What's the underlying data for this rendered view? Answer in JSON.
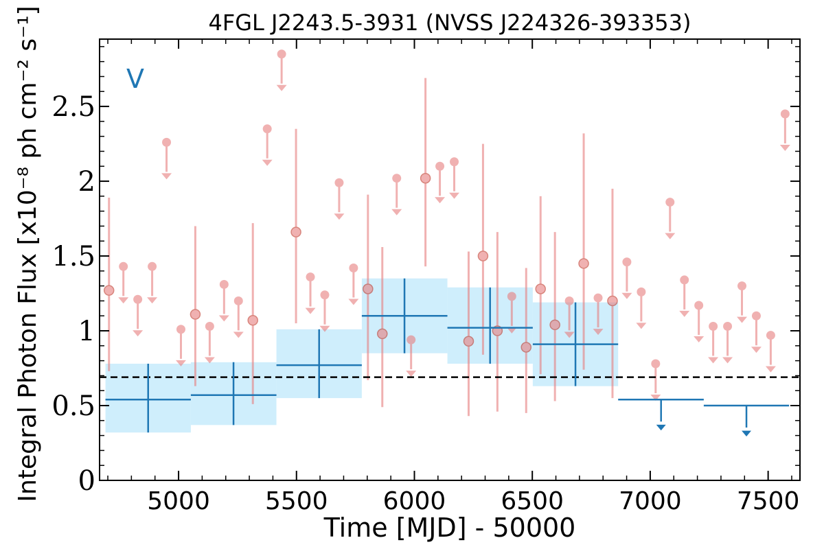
{
  "chart_data": {
    "type": "scatter",
    "title": "4FGL J2243.5-3931 (NVSS J224326-393353)",
    "xlabel": "Time [MJD] - 50000",
    "ylabel": "Integral Photon Flux [x10⁻⁸ ph cm⁻² s⁻¹]",
    "annotation": "V",
    "xlim": [
      4665,
      7635
    ],
    "ylim": [
      0,
      2.95
    ],
    "xticks": [
      5000,
      5500,
      6000,
      6500,
      7000,
      7500
    ],
    "xtick_labels": [
      "5000",
      "5500",
      "6000",
      "6500",
      "7000",
      "7500"
    ],
    "yticks": [
      0,
      0.5,
      1,
      1.5,
      2,
      2.5
    ],
    "ytick_labels": [
      "0",
      "0.5",
      "1",
      "1.5",
      "2",
      "2.5"
    ],
    "reference_line": 0.69,
    "colors": {
      "short_bins": "#e78283",
      "long_bins": "#1f77b4",
      "band": "#cfeefc",
      "reference": "#000000"
    },
    "series": [
      {
        "style": "short-bin",
        "points": [
          {
            "x": 4705,
            "y": 1.27,
            "lo": 0.73,
            "hi": 1.89
          },
          {
            "x": 4766,
            "y": 1.43,
            "ul": true
          },
          {
            "x": 4827,
            "y": 1.21,
            "ul": true
          },
          {
            "x": 4888,
            "y": 1.43,
            "ul": true
          },
          {
            "x": 4949,
            "y": 2.26,
            "ul": true
          },
          {
            "x": 5010,
            "y": 1.01,
            "ul": true
          },
          {
            "x": 5071,
            "y": 1.11,
            "lo": 0.63,
            "hi": 1.7
          },
          {
            "x": 5132,
            "y": 1.03,
            "ul": true
          },
          {
            "x": 5193,
            "y": 1.31,
            "ul": true
          },
          {
            "x": 5254,
            "y": 1.2,
            "ul": true
          },
          {
            "x": 5315,
            "y": 1.07,
            "lo": 0.51,
            "hi": 1.72
          },
          {
            "x": 5376,
            "y": 2.35,
            "ul": true
          },
          {
            "x": 5437,
            "y": 2.85,
            "ul": true
          },
          {
            "x": 5498,
            "y": 1.66,
            "lo": 1.05,
            "hi": 2.35
          },
          {
            "x": 5559,
            "y": 1.36,
            "ul": true
          },
          {
            "x": 5620,
            "y": 1.24,
            "ul": true
          },
          {
            "x": 5681,
            "y": 1.99,
            "ul": true
          },
          {
            "x": 5742,
            "y": 1.42,
            "ul": true
          },
          {
            "x": 5803,
            "y": 1.28,
            "lo": 0.67,
            "hi": 1.91
          },
          {
            "x": 5864,
            "y": 0.98,
            "lo": 0.49,
            "hi": 1.56
          },
          {
            "x": 5925,
            "y": 2.02,
            "ul": true
          },
          {
            "x": 5986,
            "y": 0.94,
            "ul": true
          },
          {
            "x": 6047,
            "y": 2.02,
            "lo": 1.43,
            "hi": 2.69
          },
          {
            "x": 6108,
            "y": 2.1,
            "ul": true
          },
          {
            "x": 6169,
            "y": 2.13,
            "ul": true
          },
          {
            "x": 6230,
            "y": 0.93,
            "lo": 0.43,
            "hi": 1.53
          },
          {
            "x": 6291,
            "y": 1.5,
            "lo": 0.84,
            "hi": 2.25
          },
          {
            "x": 6352,
            "y": 1.0,
            "lo": 0.46,
            "hi": 1.66
          },
          {
            "x": 6413,
            "y": 1.23,
            "ul": true
          },
          {
            "x": 6474,
            "y": 0.89,
            "lo": 0.45,
            "hi": 1.42
          },
          {
            "x": 6535,
            "y": 1.28,
            "lo": 0.71,
            "hi": 1.9
          },
          {
            "x": 6596,
            "y": 1.04,
            "lo": 0.53,
            "hi": 1.66
          },
          {
            "x": 6657,
            "y": 1.2,
            "ul": true
          },
          {
            "x": 6718,
            "y": 1.45,
            "lo": 0.74,
            "hi": 2.32
          },
          {
            "x": 6779,
            "y": 1.22,
            "ul": true
          },
          {
            "x": 6840,
            "y": 1.2,
            "lo": 0.55,
            "hi": 1.95
          },
          {
            "x": 6901,
            "y": 1.46,
            "ul": true
          },
          {
            "x": 6962,
            "y": 1.26,
            "ul": true
          },
          {
            "x": 7023,
            "y": 0.78,
            "ul": true
          },
          {
            "x": 7084,
            "y": 1.86,
            "ul": true
          },
          {
            "x": 7145,
            "y": 1.34,
            "ul": true
          },
          {
            "x": 7206,
            "y": 1.17,
            "ul": true
          },
          {
            "x": 7267,
            "y": 1.03,
            "ul": true
          },
          {
            "x": 7328,
            "y": 1.03,
            "ul": true
          },
          {
            "x": 7389,
            "y": 1.3,
            "ul": true
          },
          {
            "x": 7450,
            "y": 1.1,
            "ul": true
          },
          {
            "x": 7511,
            "y": 0.97,
            "ul": true
          },
          {
            "x": 7572,
            "y": 2.45,
            "ul": true
          }
        ]
      },
      {
        "style": "long-bin",
        "points": [
          {
            "x0": 4690,
            "x1": 5052,
            "x": 4871,
            "y": 0.54,
            "lo": 0.32,
            "hi": 0.78
          },
          {
            "x0": 5052,
            "x1": 5415,
            "x": 5233,
            "y": 0.57,
            "lo": 0.37,
            "hi": 0.79
          },
          {
            "x0": 5415,
            "x1": 5777,
            "x": 5596,
            "y": 0.77,
            "lo": 0.55,
            "hi": 1.01
          },
          {
            "x0": 5777,
            "x1": 6140,
            "x": 5958,
            "y": 1.1,
            "lo": 0.85,
            "hi": 1.35
          },
          {
            "x0": 6140,
            "x1": 6502,
            "x": 6321,
            "y": 1.02,
            "lo": 0.78,
            "hi": 1.29
          },
          {
            "x0": 6502,
            "x1": 6864,
            "x": 6683,
            "y": 0.91,
            "lo": 0.63,
            "hi": 1.19
          },
          {
            "x0": 6864,
            "x1": 7227,
            "x": 7046,
            "y": 0.54,
            "ul": true
          },
          {
            "x0": 7227,
            "x1": 7589,
            "x": 7408,
            "y": 0.5,
            "ul": true
          }
        ]
      }
    ]
  }
}
